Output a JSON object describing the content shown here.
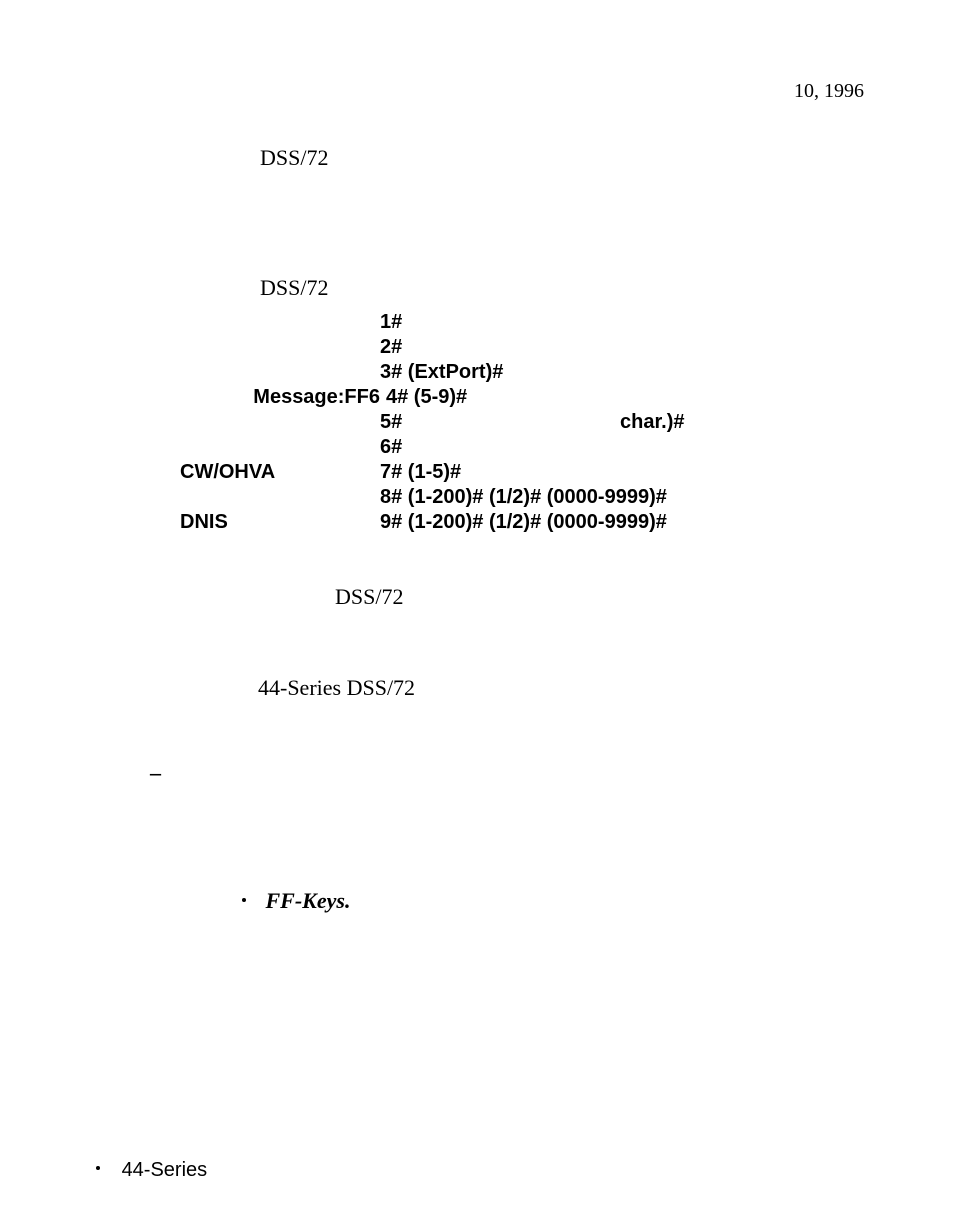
{
  "date": "10, 1996",
  "dss1": "DSS/72",
  "dss2": "DSS/72",
  "dss3": "DSS/72",
  "series44": "44-Series DSS/72",
  "dash": "–",
  "ffkeys": "FF-Keys.",
  "footer": "44-Series",
  "code": {
    "r1_mid": "1#",
    "r2_mid": "2#",
    "r3_mid": "3# (ExtPort)#",
    "r4_label": "Message:FF6",
    "r4_mid": "4# (5-9)#",
    "r5_mid": "5#",
    "r5_right": "char.)#",
    "r6_mid": "6#",
    "r7_label": "CW/OHVA",
    "r7_mid": "7# (1-5)#",
    "r8_mid": "8# (1-200)# (1/2)# (0000-9999)#",
    "r9_label": "DNIS",
    "r9_mid": "9# (1-200)# (1/2)# (0000-9999)#"
  }
}
